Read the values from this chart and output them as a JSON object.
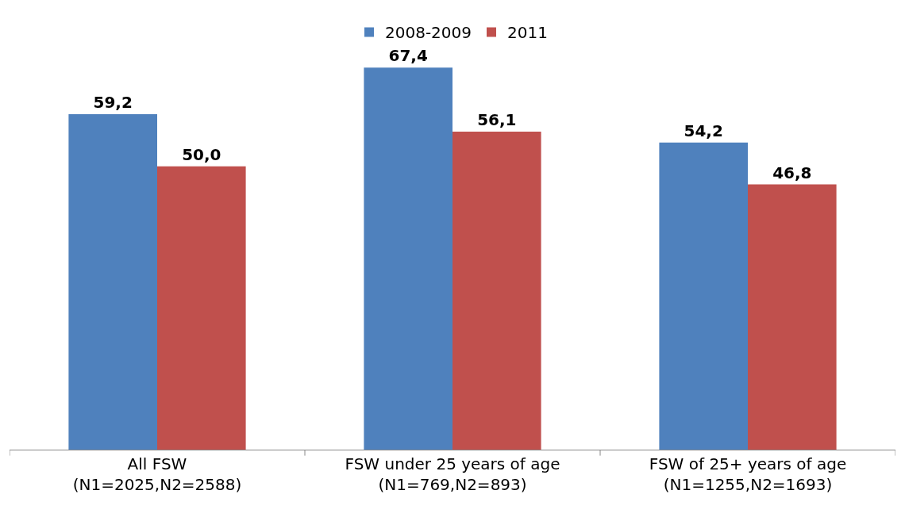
{
  "chart_data": {
    "type": "bar",
    "categories": [
      "All FSW\n(N1=2025,N2=2588)",
      "FSW under 25 years of age\n(N1=769,N2=893)",
      "FSW of 25+ years of age\n(N1=1255,N2=1693)"
    ],
    "series": [
      {
        "name": "2008-2009",
        "color": "#4f81bd",
        "values": [
          59.2,
          67.4,
          54.2
        ],
        "value_labels": [
          "59,2",
          "67,4",
          "54,2"
        ]
      },
      {
        "name": "2011",
        "color": "#c0504d",
        "values": [
          50.0,
          56.1,
          46.8
        ],
        "value_labels": [
          "50,0",
          "56,1",
          "46,8"
        ]
      }
    ],
    "legend": "top",
    "tick_labels": "x"
  }
}
